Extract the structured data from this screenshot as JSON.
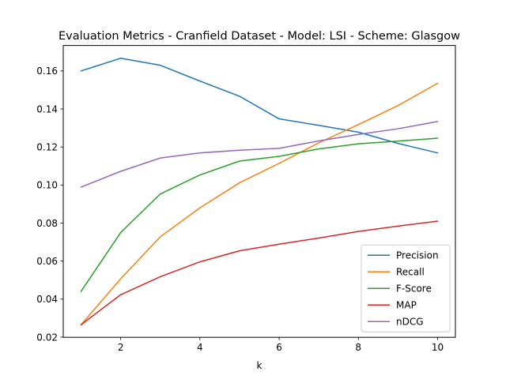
{
  "chart_data": {
    "type": "line",
    "title": "Evaluation Metrics - Cranfield Dataset - Model: LSI - Scheme: Glasgow",
    "xlabel": "k",
    "ylabel": "",
    "x": [
      1,
      2,
      3,
      4,
      5,
      6,
      7,
      8,
      9,
      10
    ],
    "xlim": [
      0.55,
      10.45
    ],
    "ylim": [
      0.0199,
      0.1734
    ],
    "xticks": [
      2,
      4,
      6,
      8,
      10
    ],
    "yticks": [
      0.02,
      0.04,
      0.06,
      0.08,
      0.1,
      0.12,
      0.14,
      0.16
    ],
    "xtick_labels": [
      "2",
      "4",
      "6",
      "8",
      "10"
    ],
    "ytick_labels": [
      "0.02",
      "0.04",
      "0.06",
      "0.08",
      "0.10",
      "0.12",
      "0.14",
      "0.16"
    ],
    "grid": false,
    "legend_position": "lower-right",
    "series": [
      {
        "name": "Precision",
        "color": "#1f77b4",
        "values": [
          0.16,
          0.1667,
          0.163,
          0.1547,
          0.1467,
          0.1348,
          0.1314,
          0.1278,
          0.1219,
          0.1169
        ]
      },
      {
        "name": "Recall",
        "color": "#ff7f0e",
        "values": [
          0.0265,
          0.0507,
          0.0728,
          0.088,
          0.1012,
          0.1114,
          0.1222,
          0.1318,
          0.1418,
          0.1535
        ]
      },
      {
        "name": "F-Score",
        "color": "#2ca02c",
        "values": [
          0.0441,
          0.075,
          0.0953,
          0.1053,
          0.1126,
          0.1151,
          0.119,
          0.1217,
          0.1231,
          0.1246
        ]
      },
      {
        "name": "MAP",
        "color": "#d62728",
        "values": [
          0.0265,
          0.0423,
          0.0518,
          0.0596,
          0.0654,
          0.0689,
          0.0721,
          0.0756,
          0.0784,
          0.081
        ]
      },
      {
        "name": "nDCG",
        "color": "#9467bd",
        "values": [
          0.0989,
          0.1072,
          0.1142,
          0.1169,
          0.1183,
          0.1193,
          0.1232,
          0.1266,
          0.1296,
          0.1334
        ]
      }
    ]
  }
}
